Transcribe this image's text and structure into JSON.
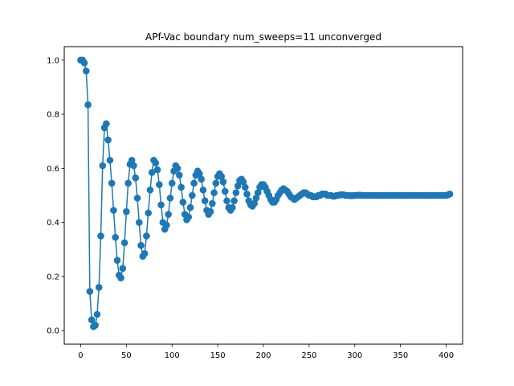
{
  "chart_data": {
    "type": "line",
    "title": "APf-Vac boundary num_sweeps=11 unconverged",
    "xlabel": "",
    "ylabel": "",
    "xlim": [
      -18,
      418
    ],
    "ylim": [
      -0.05,
      1.05
    ],
    "xticks": [
      0,
      50,
      100,
      150,
      200,
      250,
      300,
      350,
      400
    ],
    "yticks": [
      0.0,
      0.2,
      0.4,
      0.6,
      0.8,
      1.0
    ],
    "xtick_labels": [
      "0",
      "50",
      "100",
      "150",
      "200",
      "250",
      "300",
      "350",
      "400"
    ],
    "ytick_labels": [
      "0.0",
      "0.2",
      "0.4",
      "0.6",
      "0.8",
      "1.0"
    ],
    "grid": false,
    "markers": true,
    "color": "#1f77b4",
    "series": [
      {
        "name": "",
        "x_start": 0,
        "x_step": 2,
        "values": [
          1.0,
          1.0,
          0.99,
          0.96,
          0.835,
          0.145,
          0.04,
          0.015,
          0.02,
          0.06,
          0.16,
          0.35,
          0.61,
          0.75,
          0.765,
          0.705,
          0.63,
          0.545,
          0.445,
          0.345,
          0.26,
          0.205,
          0.195,
          0.23,
          0.325,
          0.44,
          0.545,
          0.615,
          0.63,
          0.61,
          0.565,
          0.49,
          0.4,
          0.315,
          0.275,
          0.285,
          0.35,
          0.435,
          0.52,
          0.585,
          0.63,
          0.62,
          0.595,
          0.54,
          0.465,
          0.4,
          0.375,
          0.39,
          0.43,
          0.49,
          0.545,
          0.59,
          0.61,
          0.6,
          0.575,
          0.53,
          0.475,
          0.43,
          0.41,
          0.42,
          0.455,
          0.5,
          0.545,
          0.575,
          0.59,
          0.58,
          0.56,
          0.52,
          0.48,
          0.445,
          0.43,
          0.44,
          0.47,
          0.51,
          0.545,
          0.57,
          0.58,
          0.57,
          0.55,
          0.515,
          0.48,
          0.455,
          0.445,
          0.455,
          0.48,
          0.51,
          0.535,
          0.555,
          0.56,
          0.55,
          0.53,
          0.505,
          0.48,
          0.465,
          0.46,
          0.47,
          0.49,
          0.51,
          0.53,
          0.54,
          0.54,
          0.53,
          0.515,
          0.5,
          0.485,
          0.475,
          0.475,
          0.485,
          0.5,
          0.51,
          0.52,
          0.525,
          0.52,
          0.515,
          0.505,
          0.495,
          0.49,
          0.485,
          0.49,
          0.495,
          0.5,
          0.505,
          0.51,
          0.51,
          0.505,
          0.5,
          0.5,
          0.495,
          0.495,
          0.495,
          0.5,
          0.5,
          0.505,
          0.505,
          0.505,
          0.5,
          0.5,
          0.5,
          0.497,
          0.497,
          0.5,
          0.5,
          0.502,
          0.503,
          0.502,
          0.5,
          0.5,
          0.499,
          0.499,
          0.499,
          0.5,
          0.5,
          0.501,
          0.501,
          0.5,
          0.5,
          0.5,
          0.5,
          0.5,
          0.5,
          0.5,
          0.5,
          0.5,
          0.5,
          0.5,
          0.5,
          0.5,
          0.5,
          0.5,
          0.5,
          0.5,
          0.5,
          0.5,
          0.5,
          0.5,
          0.5,
          0.5,
          0.5,
          0.5,
          0.5,
          0.5,
          0.5,
          0.5,
          0.5,
          0.5,
          0.5,
          0.5,
          0.5,
          0.5,
          0.5,
          0.5,
          0.5,
          0.5,
          0.5,
          0.5,
          0.5,
          0.5,
          0.5,
          0.5,
          0.5,
          0.5,
          0.502,
          0.505
        ]
      }
    ]
  }
}
